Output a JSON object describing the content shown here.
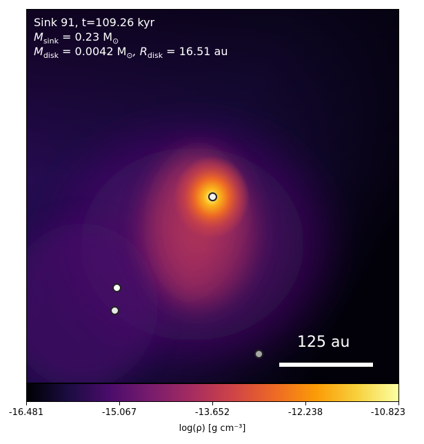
{
  "overlay": {
    "line1": "Sink 91, t=109.26 kyr",
    "msink_sym": "M",
    "msink_sub": "sink",
    "msink_val": " = 0.23 M",
    "sun_symbol": "⊙",
    "mdisk_sym": "M",
    "mdisk_sub": "disk",
    "mdisk_val": " = 0.0042 M",
    "rdisk_sym": ", R",
    "rdisk_sub": "disk",
    "rdisk_val": " = 16.51 au"
  },
  "scale_bar": {
    "label": "125 au"
  },
  "colorbar": {
    "ticks": [
      "-16.481",
      "-15.067",
      "-13.652",
      "-12.238",
      "-10.823"
    ],
    "label": "log(ρ) [g cm⁻³]",
    "colormap": [
      "#000004",
      "#1b0c41",
      "#4a0c6b",
      "#781c6d",
      "#a52c60",
      "#cf4446",
      "#ed6925",
      "#fb9b06",
      "#f7d13d",
      "#fcffa4"
    ]
  }
}
